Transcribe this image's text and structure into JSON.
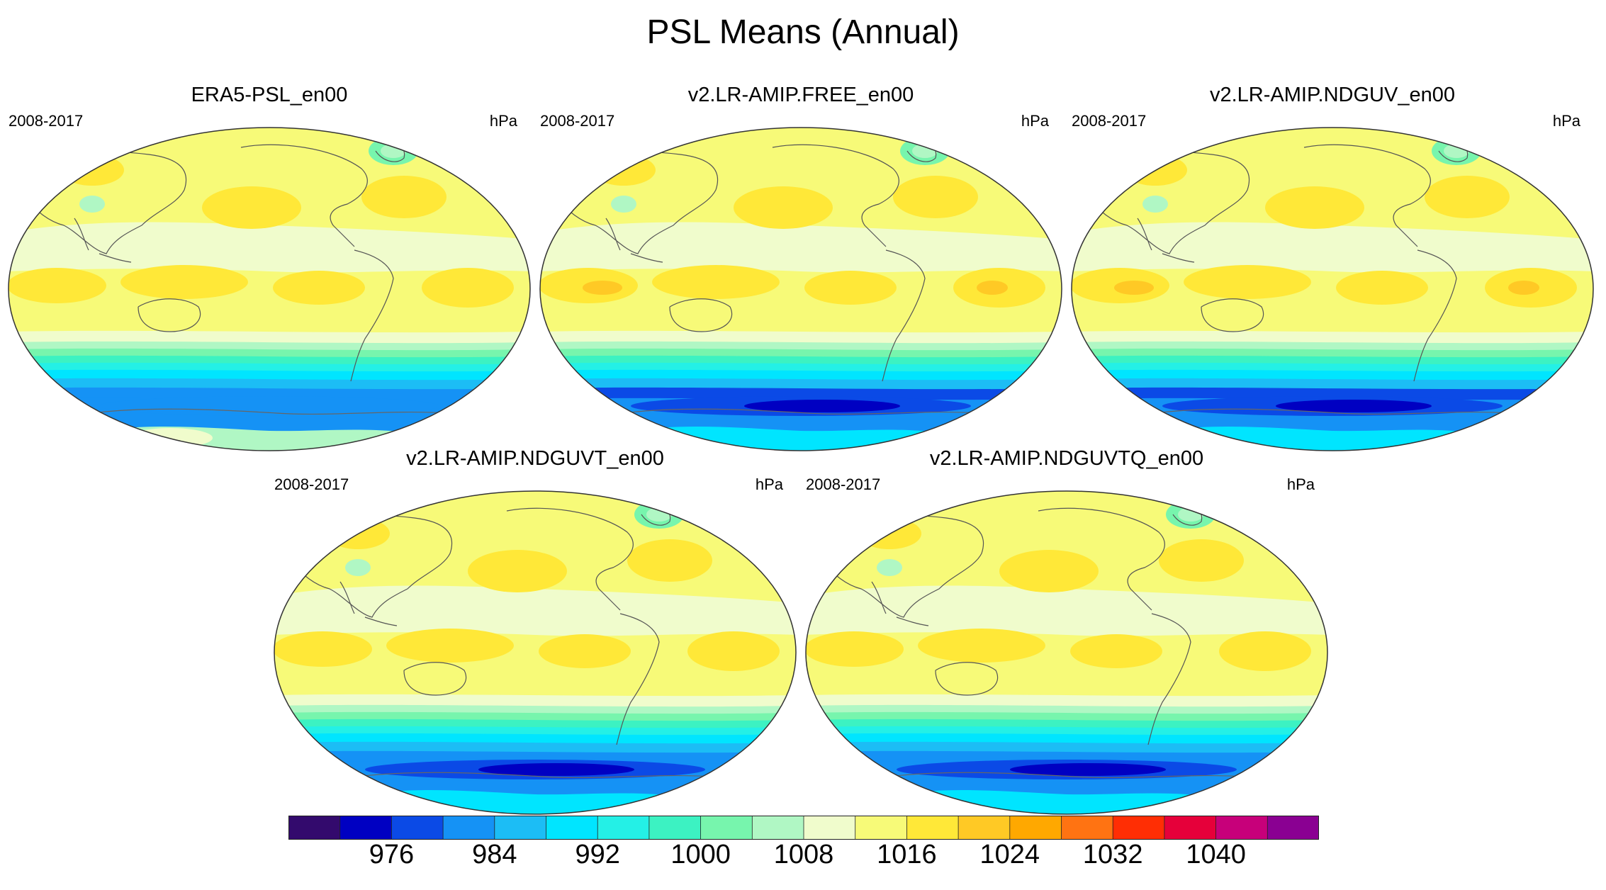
{
  "title": "PSL Means (Annual)",
  "panels": [
    {
      "title": "ERA5-PSL_en00",
      "years": "2008-2017",
      "units": "hPa",
      "south_variant": "obs"
    },
    {
      "title": "v2.LR-AMIP.FREE_en00",
      "years": "2008-2017",
      "units": "hPa",
      "south_variant": "deep"
    },
    {
      "title": "v2.LR-AMIP.NDGUV_en00",
      "years": "2008-2017",
      "units": "hPa",
      "south_variant": "deep"
    },
    {
      "title": "v2.LR-AMIP.NDGUVT_en00",
      "years": "2008-2017",
      "units": "hPa",
      "south_variant": "mid"
    },
    {
      "title": "v2.LR-AMIP.NDGUVTQ_en00",
      "years": "2008-2017",
      "units": "hPa",
      "south_variant": "mid"
    }
  ],
  "colorbar": {
    "colors": [
      "#330a6d",
      "#0000c2",
      "#0b4ae6",
      "#1592f5",
      "#1cbdf5",
      "#00e5ff",
      "#24f0e6",
      "#3cf2c2",
      "#77f5ad",
      "#b0f7c4",
      "#f0fccc",
      "#f7fa78",
      "#ffe838",
      "#ffc925",
      "#ffa800",
      "#ff7312",
      "#ff2e04",
      "#e6003a",
      "#c7007a",
      "#8a0092"
    ],
    "labels": [
      "976",
      "984",
      "992",
      "1000",
      "1008",
      "1016",
      "1024",
      "1032",
      "1040"
    ],
    "label_positions": [
      2,
      4,
      6,
      8,
      10,
      12,
      14,
      16,
      18
    ]
  }
}
